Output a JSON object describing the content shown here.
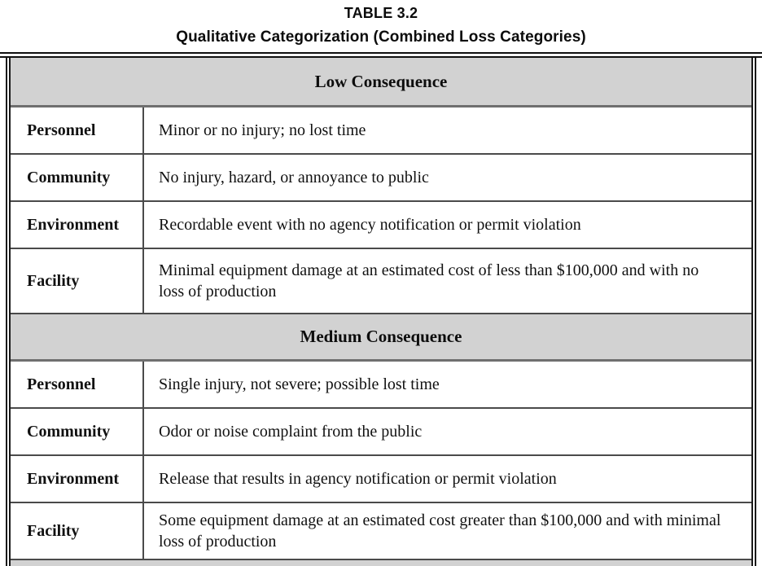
{
  "title": {
    "line1": "TABLE 3.2",
    "line2": "Qualitative Categorization (Combined Loss Categories)"
  },
  "table": {
    "sections": [
      {
        "header": "Low Consequence",
        "rows": [
          {
            "category": "Personnel",
            "description": "Minor or no injury; no lost time"
          },
          {
            "category": "Community",
            "description": "No injury, hazard, or annoyance to public"
          },
          {
            "category": "Environment",
            "description": "Recordable event with no agency notification or permit violation"
          },
          {
            "category": "Facility",
            "description": "Minimal equipment damage at an estimated cost of less than $100,000 and with no loss of production"
          }
        ]
      },
      {
        "header": "Medium Consequence",
        "rows": [
          {
            "category": "Personnel",
            "description": "Single injury, not severe; possible lost time"
          },
          {
            "category": "Community",
            "description": "Odor or noise complaint from the public"
          },
          {
            "category": "Environment",
            "description": "Release that results in agency notification or permit violation"
          },
          {
            "category": "Facility",
            "description": "Some equipment damage at an estimated cost greater than $100,000 and with minimal loss of production"
          }
        ]
      }
    ]
  }
}
